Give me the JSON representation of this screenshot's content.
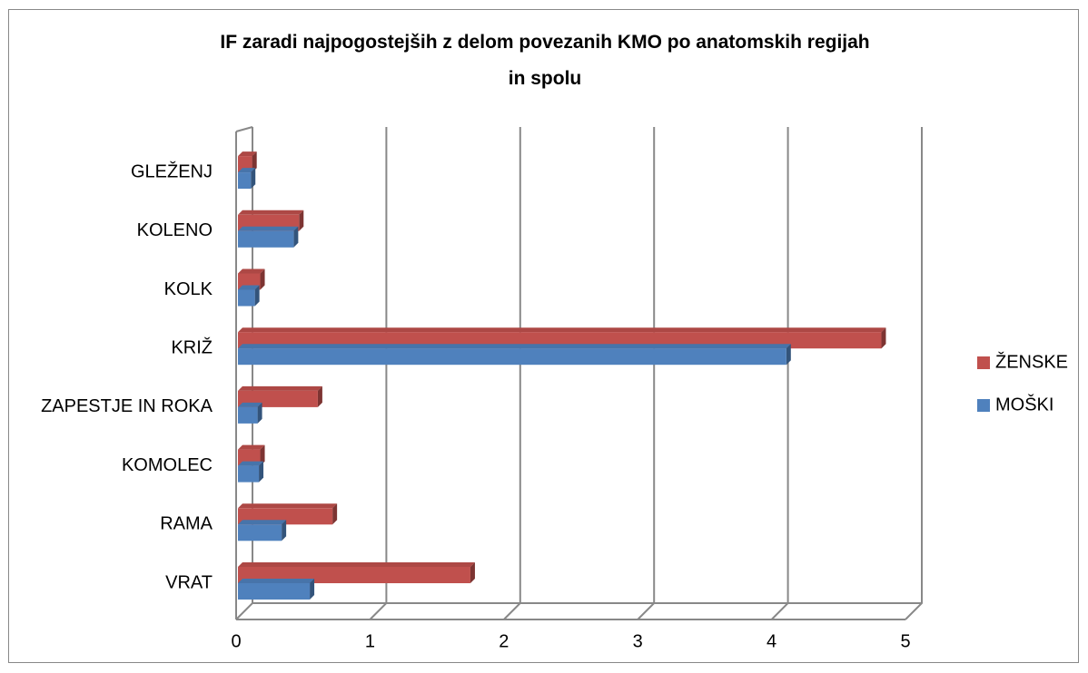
{
  "chart_data": {
    "type": "bar",
    "orientation": "horizontal",
    "three_d": true,
    "title": "IF zaradi najpogostejših z delom povezanih KMO po anatomskih regijah in spolu",
    "categories": [
      "VRAT",
      "RAMA",
      "KOMOLEC",
      "ZAPESTJE IN ROKA",
      "KRIŽ",
      "KOLK",
      "KOLENO",
      "GLEŽENJ"
    ],
    "series": [
      {
        "name": "ŽENSKE",
        "color": "#c0504d",
        "values": [
          1.75,
          0.72,
          0.18,
          0.61,
          4.82,
          0.18,
          0.47,
          0.12
        ]
      },
      {
        "name": "MOŠKI",
        "color": "#4f81bd",
        "values": [
          0.55,
          0.34,
          0.17,
          0.16,
          4.11,
          0.14,
          0.43,
          0.11
        ]
      }
    ],
    "xlim": [
      0,
      5
    ],
    "xticks": [
      0,
      1,
      2,
      3,
      4,
      5
    ],
    "grid": true,
    "legend": "right"
  }
}
